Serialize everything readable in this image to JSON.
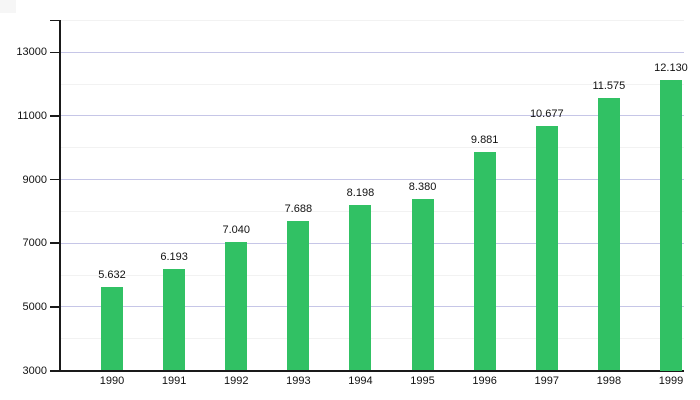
{
  "chart_data": {
    "type": "bar",
    "title": "",
    "xlabel": "",
    "ylabel": "",
    "categories": [
      "1990",
      "1991",
      "1992",
      "1993",
      "1994",
      "1995",
      "1996",
      "1997",
      "1998",
      "1999"
    ],
    "values": [
      5632,
      6193,
      7040,
      7688,
      8198,
      8380,
      9881,
      10677,
      11575,
      12130
    ],
    "value_labels": [
      "5.632",
      "6.193",
      "7.040",
      "7.688",
      "8.198",
      "8.380",
      "9.881",
      "10.677",
      "11.575",
      "12.130"
    ],
    "ylim": [
      3000,
      14000
    ],
    "y_major_ticks": [
      3000,
      5000,
      7000,
      9000,
      11000,
      13000
    ],
    "y_minor_step": 1000,
    "grid": "on",
    "legend": "none",
    "colors": {
      "bar": "#31c164",
      "major_gridline": "#c6c6e7",
      "minor_gridline": "#f2f2f2",
      "axis": "#1a1a1a",
      "text": "#111111",
      "background": "#ffffff"
    }
  }
}
